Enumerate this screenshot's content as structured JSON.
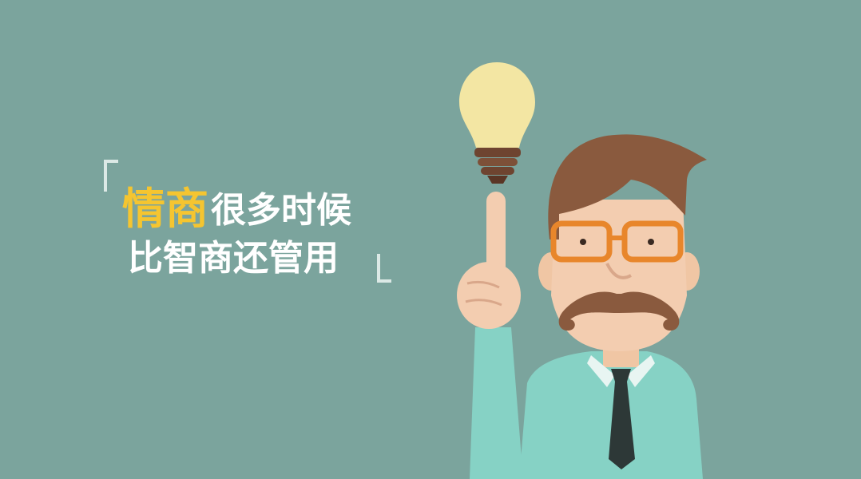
{
  "headline": {
    "highlight": "情商",
    "rest_line1": "很多时候",
    "line2": "比智商还管用"
  }
}
